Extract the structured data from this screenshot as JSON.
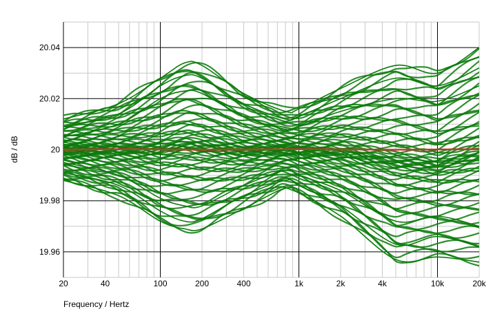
{
  "chart_data": {
    "type": "line",
    "title": "",
    "xlabel": "Frequency / Hertz",
    "ylabel": "dB / dB",
    "x_scale": "log",
    "xlim": [
      20,
      20000
    ],
    "ylim": [
      19.95,
      20.05
    ],
    "x_ticks": [
      {
        "value": 20,
        "label": "20"
      },
      {
        "value": 40,
        "label": "40"
      },
      {
        "value": 100,
        "label": "100"
      },
      {
        "value": 200,
        "label": "200"
      },
      {
        "value": 400,
        "label": "400"
      },
      {
        "value": 1000,
        "label": "1k"
      },
      {
        "value": 2000,
        "label": "2k"
      },
      {
        "value": 4000,
        "label": "4k"
      },
      {
        "value": 10000,
        "label": "10k"
      },
      {
        "value": 20000,
        "label": "20k"
      }
    ],
    "y_ticks": [
      {
        "value": 20.04,
        "label": "20.04"
      },
      {
        "value": 20.02,
        "label": "20.02"
      },
      {
        "value": 20,
        "label": "20"
      },
      {
        "value": 19.98,
        "label": "19.98"
      },
      {
        "value": 19.96,
        "label": "19.96"
      }
    ],
    "grid": true,
    "legend": "none",
    "colors": {
      "band": "#0a7a0a",
      "mean": "#c0392b",
      "grid_major": "#000000",
      "grid_minor": "#c8c8c8"
    },
    "series": [
      {
        "role": "mean",
        "x": [
          20,
          50,
          100,
          200,
          500,
          1000,
          2000,
          5000,
          10000,
          20000
        ],
        "y": [
          20.0,
          20.0002,
          20.0001,
          20.0,
          20.0001,
          20.0002,
          20.0001,
          20.0,
          20.0001,
          20.0002
        ]
      },
      {
        "role": "envelope-upper",
        "x": [
          20,
          50,
          100,
          150,
          200,
          400,
          800,
          1000,
          2000,
          5000,
          10000,
          20000
        ],
        "y": [
          20.012,
          20.018,
          20.028,
          20.034,
          20.033,
          20.022,
          20.015,
          20.016,
          20.024,
          20.033,
          20.03,
          20.04
        ]
      },
      {
        "role": "envelope-lower",
        "x": [
          20,
          50,
          100,
          150,
          200,
          400,
          800,
          1000,
          2000,
          5000,
          10000,
          20000
        ],
        "y": [
          19.988,
          19.982,
          19.972,
          19.969,
          19.969,
          19.977,
          19.985,
          19.983,
          19.974,
          19.957,
          19.958,
          19.956
        ]
      },
      {
        "role": "sample",
        "x": [
          20,
          50,
          100,
          150,
          200,
          400,
          800,
          1000,
          2000,
          5000,
          10000,
          20000
        ],
        "y": [
          20.005,
          20.01,
          20.02,
          20.023,
          20.022,
          20.013,
          20.008,
          20.009,
          20.015,
          20.02,
          20.019,
          20.025
        ]
      },
      {
        "role": "sample",
        "x": [
          20,
          50,
          100,
          150,
          200,
          400,
          800,
          1000,
          2000,
          5000,
          10000,
          20000
        ],
        "y": [
          19.995,
          19.99,
          19.981,
          19.978,
          19.978,
          19.986,
          19.992,
          19.99,
          19.984,
          19.972,
          19.974,
          19.97
        ]
      },
      {
        "role": "sample",
        "x": [
          20,
          50,
          100,
          150,
          200,
          400,
          800,
          1000,
          2000,
          5000,
          10000,
          20000
        ],
        "y": [
          20.009,
          20.014,
          20.025,
          20.029,
          20.028,
          20.018,
          20.012,
          20.013,
          20.02,
          20.028,
          20.025,
          20.032
        ]
      },
      {
        "role": "sample",
        "x": [
          20,
          50,
          100,
          150,
          200,
          400,
          800,
          1000,
          2000,
          5000,
          10000,
          20000
        ],
        "y": [
          19.991,
          19.986,
          19.976,
          19.972,
          19.973,
          19.982,
          19.988,
          19.986,
          19.978,
          19.963,
          19.966,
          19.962
        ]
      }
    ]
  }
}
